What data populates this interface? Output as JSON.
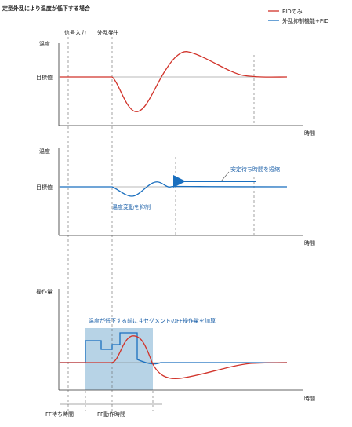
{
  "title": "定型外乱により温度が低下する場合",
  "legend": {
    "pid_only": "PIDのみ",
    "with_suppression": "外乱抑制機能+PID",
    "pid_color": "#d1332a",
    "suppression_color": "#1a6fbf"
  },
  "markers": {
    "signal_input": "信号入力",
    "disturbance": "外乱発生"
  },
  "panel1": {
    "ylabel": "温度",
    "setpoint": "目標値",
    "xlabel": "時間"
  },
  "panel2": {
    "ylabel": "温度",
    "setpoint": "目標値",
    "xlabel": "時間",
    "stabilize_note": "安定待ち時間を短縮",
    "fluctuation_note": "温度変動を抑制"
  },
  "panel3": {
    "ylabel": "操作量",
    "xlabel": "時間",
    "ff_note": "温度が低下する前に４セグメントのFF操作量を加算",
    "ff_box_color": "#b7d3e6"
  },
  "bottom": {
    "ff_wait": "FF待ち時間",
    "ff_action": "FF動作時間"
  }
}
